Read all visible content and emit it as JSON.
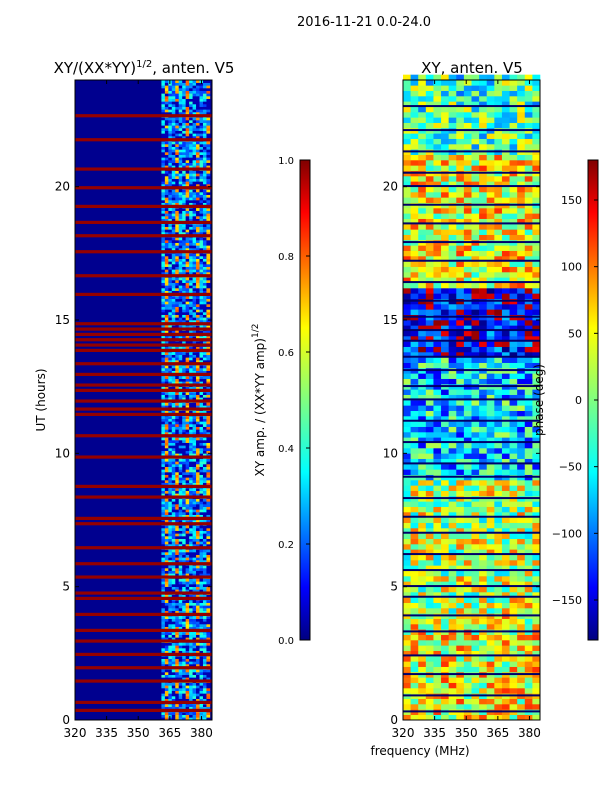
{
  "figure_title": "2016-11-21 0.0-24.0",
  "chart_data": [
    {
      "type": "heatmap",
      "title": "XY/(XX*YY)^1/2, anten. V5",
      "title_main": "XY/(XX*YY)",
      "title_exp": "1/2",
      "title_tail": ", anten. V5",
      "xlabel": "",
      "ylabel": "UT (hours)",
      "xlim": [
        320,
        385
      ],
      "ylim": [
        0,
        24
      ],
      "xticks": [
        320,
        335,
        350,
        365,
        380
      ],
      "yticks": [
        0,
        5,
        10,
        15,
        20
      ],
      "colormap": "jet",
      "colorbar": {
        "label_main": "XY amp. / (XX*YY amp)",
        "label_exp": "1/2",
        "range": [
          0.0,
          1.0
        ],
        "ticks": [
          "0.0",
          "0.2",
          "0.4",
          "0.6",
          "0.8",
          "1.0"
        ],
        "tick_values": [
          0.0,
          0.2,
          0.4,
          0.6,
          0.8,
          1.0
        ]
      },
      "background_value": 0.05,
      "active_band_mhz": [
        361,
        384
      ],
      "saturated_rows_ut": [
        0.3,
        0.6,
        1.4,
        1.9,
        2.4,
        2.9,
        3.3,
        3.9,
        4.5,
        4.7,
        5.3,
        5.8,
        6.4,
        7.3,
        7.5,
        8.3,
        8.7,
        9.8,
        10.6,
        11.4,
        11.6,
        11.9,
        12.3,
        12.5,
        12.9,
        13.3,
        13.8,
        14.0,
        14.2,
        14.4,
        14.6,
        14.8,
        15.9,
        16.6,
        17.5,
        18.1,
        18.6,
        19.2,
        19.9,
        20.6,
        21.7,
        22.6
      ]
    },
    {
      "type": "heatmap",
      "title": "XY, anten. V5",
      "xlabel": "frequency (MHz)",
      "ylabel": "",
      "xlim": [
        320,
        385
      ],
      "ylim": [
        0,
        24
      ],
      "xticks": [
        320,
        335,
        350,
        365,
        380
      ],
      "yticks": [
        0,
        5,
        10,
        15,
        20
      ],
      "colormap": "jet",
      "colorbar": {
        "label_main": "phase (deg)",
        "range": [
          -180,
          180
        ],
        "ticks": [
          "−150",
          "−100",
          "−50",
          "0",
          "50",
          "100",
          "150"
        ],
        "tick_values": [
          -150,
          -100,
          -50,
          0,
          50,
          100,
          150
        ]
      },
      "phase_regions": [
        {
          "ut": [
            21.0,
            24.0
          ],
          "deg_mean": -20
        },
        {
          "ut": [
            16.0,
            21.0
          ],
          "deg_mean": 40
        },
        {
          "ut": [
            13.5,
            16.0
          ],
          "deg_mean": -140
        },
        {
          "ut": [
            9.0,
            13.5
          ],
          "deg_mean": -60
        },
        {
          "ut": [
            4.0,
            9.0
          ],
          "deg_mean": 20
        },
        {
          "ut": [
            0.0,
            4.0
          ],
          "deg_mean": 40
        }
      ],
      "dark_rows_ut": [
        0.3,
        0.9,
        1.7,
        2.4,
        3.3,
        3.9,
        4.6,
        5.0,
        5.6,
        6.2,
        7.0,
        7.6,
        8.3,
        9.1,
        9.6,
        10.4,
        11.2,
        12.0,
        12.5,
        13.1,
        13.6,
        14.2,
        14.6,
        15.1,
        15.7,
        16.4,
        17.2,
        17.9,
        18.6,
        19.3,
        20.0,
        20.5,
        21.3,
        22.1,
        23.0
      ]
    }
  ]
}
